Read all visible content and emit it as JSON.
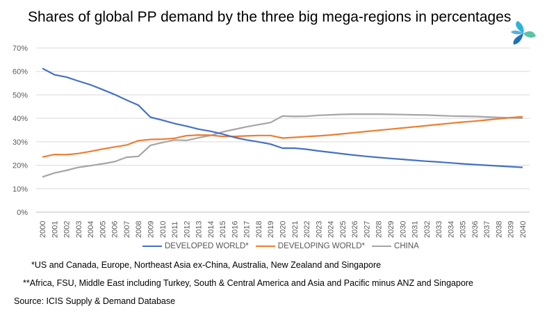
{
  "title": "Shares of global PP demand by the three big mega-regions in percentages",
  "logo": {
    "icon": "icis-logo-icon",
    "colors": [
      "#2db5d9",
      "#5dc3a4",
      "#1e72b8"
    ]
  },
  "chart_data": {
    "type": "line",
    "x": [
      2000,
      2001,
      2002,
      2003,
      2004,
      2005,
      2006,
      2007,
      2008,
      2009,
      2010,
      2011,
      2012,
      2013,
      2014,
      2015,
      2016,
      2017,
      2018,
      2019,
      2020,
      2021,
      2022,
      2023,
      2024,
      2025,
      2026,
      2027,
      2028,
      2029,
      2030,
      2031,
      2032,
      2033,
      2034,
      2035,
      2036,
      2037,
      2038,
      2039,
      2040
    ],
    "ylim": [
      0,
      70
    ],
    "yticks": [
      0,
      10,
      20,
      30,
      40,
      50,
      60,
      70
    ],
    "ytick_labels": [
      "0%",
      "10%",
      "20%",
      "30%",
      "40%",
      "50%",
      "60%",
      "70%"
    ],
    "grid": true,
    "legend_position": "bottom",
    "series": [
      {
        "name": "DEVELOPED WORLD*",
        "color": "#4472c4",
        "values": [
          61.3,
          58.6,
          57.6,
          55.9,
          54.3,
          52.3,
          50.2,
          47.8,
          45.6,
          40.5,
          39.2,
          37.8,
          36.7,
          35.4,
          34.5,
          33.3,
          31.9,
          30.8,
          30.0,
          29.0,
          27.3,
          27.3,
          26.8,
          26.1,
          25.5,
          24.9,
          24.3,
          23.8,
          23.3,
          22.9,
          22.5,
          22.1,
          21.7,
          21.4,
          21.0,
          20.6,
          20.3,
          20.0,
          19.7,
          19.4,
          19.1
        ]
      },
      {
        "name": "DEVELOPING WORLD*",
        "color": "#ed7d31",
        "values": [
          23.5,
          24.6,
          24.5,
          25.0,
          25.9,
          26.9,
          27.8,
          28.6,
          30.5,
          31.0,
          31.1,
          31.5,
          32.6,
          32.9,
          32.8,
          32.3,
          32.3,
          32.5,
          32.7,
          32.7,
          31.6,
          31.9,
          32.2,
          32.5,
          32.9,
          33.4,
          33.9,
          34.4,
          34.9,
          35.4,
          35.9,
          36.4,
          36.9,
          37.4,
          37.9,
          38.4,
          38.8,
          39.3,
          39.8,
          40.3,
          40.7
        ]
      },
      {
        "name": "CHINA",
        "color": "#a5a5a5",
        "values": [
          15.0,
          16.7,
          17.8,
          19.1,
          19.8,
          20.6,
          21.5,
          23.4,
          23.8,
          28.5,
          29.7,
          30.8,
          30.6,
          31.7,
          32.7,
          34.2,
          35.3,
          36.4,
          37.3,
          38.2,
          41.0,
          40.8,
          40.9,
          41.3,
          41.5,
          41.7,
          41.8,
          41.8,
          41.8,
          41.7,
          41.6,
          41.5,
          41.4,
          41.2,
          41.0,
          40.9,
          40.8,
          40.6,
          40.4,
          40.2,
          40.1
        ]
      }
    ]
  },
  "footnotes": {
    "developed": "*US and Canada, Europe, Northeast Asia ex-China, Australia, New Zealand and Singapore",
    "developing": "**Africa, FSU, Middle East including Turkey, South & Central America and Asia and Pacific minus ANZ and Singapore",
    "source": "Source: ICIS Supply & Demand Database"
  }
}
